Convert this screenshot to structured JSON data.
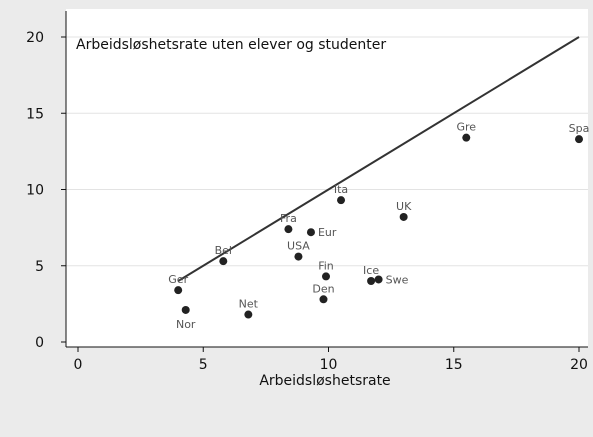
{
  "chart_data": {
    "type": "scatter",
    "title": "Arbeidsløshetsrate uten elever og studenter",
    "xlabel": "Arbeidsløshetsrate",
    "ylabel": "",
    "xlim": [
      0,
      20
    ],
    "ylim": [
      0,
      20
    ],
    "x_ticks": [
      0,
      5,
      10,
      15,
      20
    ],
    "y_ticks": [
      0,
      5,
      10,
      15,
      20
    ],
    "grid": "horizontal",
    "points": [
      {
        "label": "Ger",
        "x": 4.0,
        "y": 3.4,
        "label_pos": "above"
      },
      {
        "label": "Nor",
        "x": 4.3,
        "y": 2.1,
        "label_pos": "below"
      },
      {
        "label": "Bel",
        "x": 5.8,
        "y": 5.3,
        "label_pos": "above"
      },
      {
        "label": "Net",
        "x": 6.8,
        "y": 1.8,
        "label_pos": "above"
      },
      {
        "label": "Fra",
        "x": 8.4,
        "y": 7.4,
        "label_pos": "above"
      },
      {
        "label": "USA",
        "x": 8.8,
        "y": 5.6,
        "label_pos": "above"
      },
      {
        "label": "Eur",
        "x": 9.3,
        "y": 7.2,
        "label_pos": "right"
      },
      {
        "label": "Fin",
        "x": 9.9,
        "y": 4.3,
        "label_pos": "above"
      },
      {
        "label": "Den",
        "x": 9.8,
        "y": 2.8,
        "label_pos": "above"
      },
      {
        "label": "Ita",
        "x": 10.5,
        "y": 9.3,
        "label_pos": "above"
      },
      {
        "label": "Ice",
        "x": 11.7,
        "y": 4.0,
        "label_pos": "above"
      },
      {
        "label": "Swe",
        "x": 12.0,
        "y": 4.1,
        "label_pos": "right"
      },
      {
        "label": "UK",
        "x": 13.0,
        "y": 8.2,
        "label_pos": "above"
      },
      {
        "label": "Gre",
        "x": 15.5,
        "y": 13.4,
        "label_pos": "above"
      },
      {
        "label": "Spa",
        "x": 20.0,
        "y": 13.3,
        "label_pos": "above"
      }
    ],
    "reference_line": {
      "x": [
        4.0,
        20.0
      ],
      "y": [
        4.0,
        20.0
      ]
    },
    "colors": {
      "background": "#ebebeb",
      "plot_background": "#ffffff",
      "gridline": "#e3e3e3",
      "marker": "#222222",
      "line": "#333333",
      "point_label": "#555555"
    }
  }
}
